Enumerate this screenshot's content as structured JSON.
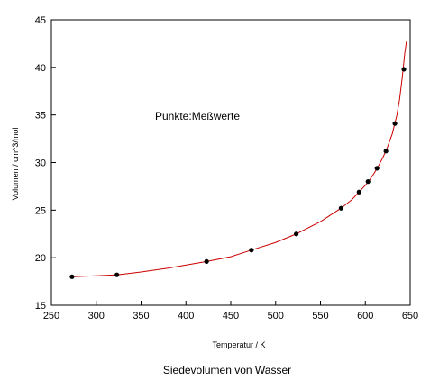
{
  "chart_data": {
    "type": "scatter",
    "caption": "Siedevolumen von Wasser",
    "xlabel": "Temperatur / K",
    "ylabel": "Volumen / cm^3/mol",
    "annotation": "Punkte:Meßwerte",
    "xlim": [
      250,
      650
    ],
    "ylim": [
      15,
      45
    ],
    "xticks": [
      250,
      300,
      350,
      400,
      450,
      500,
      550,
      600,
      650
    ],
    "yticks": [
      15,
      20,
      25,
      30,
      35,
      40,
      45
    ],
    "grid": false,
    "legend": "none",
    "colors": {
      "points": "#000000",
      "fit_line": "#cc0000",
      "axes": "#000000"
    },
    "series": [
      {
        "kind": "points",
        "x": [
          273,
          323,
          423,
          473,
          523,
          573,
          593,
          603,
          613,
          623,
          633,
          643
        ],
        "y": [
          18.0,
          18.2,
          19.6,
          20.8,
          22.5,
          25.2,
          26.9,
          28.0,
          29.4,
          31.2,
          34.1,
          39.8
        ]
      },
      {
        "kind": "fit_line",
        "x": [
          273,
          300,
          323,
          350,
          380,
          423,
          450,
          473,
          500,
          523,
          550,
          573,
          585,
          593,
          600,
          605,
          610,
          615,
          620,
          625,
          630,
          635,
          638,
          641,
          644,
          646
        ],
        "y": [
          18.0,
          18.1,
          18.2,
          18.5,
          18.9,
          19.6,
          20.1,
          20.8,
          21.6,
          22.5,
          23.8,
          25.2,
          26.1,
          26.9,
          27.6,
          28.2,
          28.9,
          29.7,
          30.6,
          31.7,
          33.0,
          34.9,
          36.5,
          38.8,
          41.5,
          42.8
        ]
      }
    ]
  }
}
